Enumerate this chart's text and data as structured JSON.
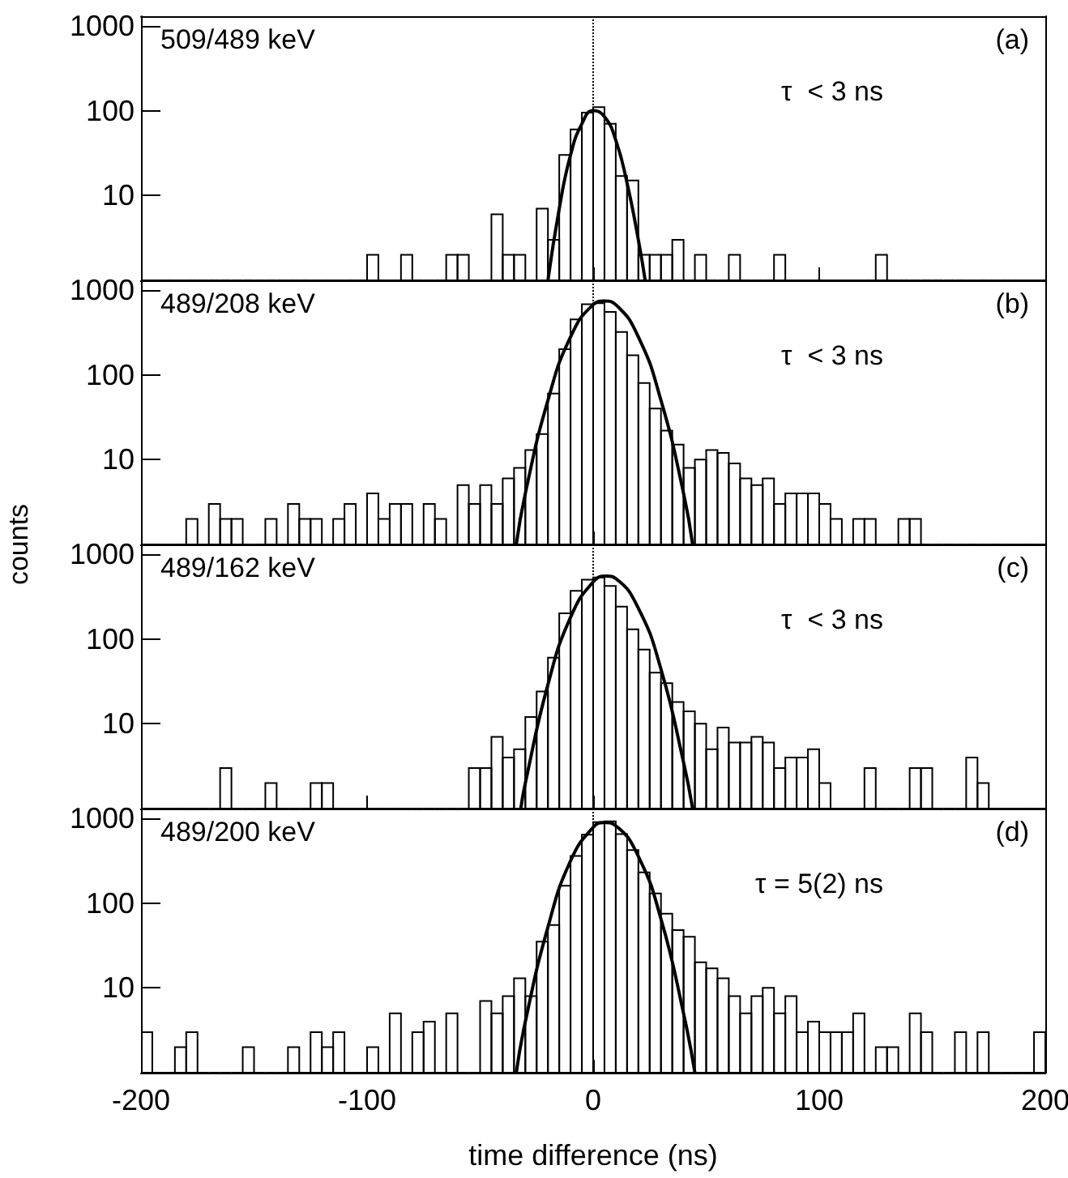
{
  "chart_data": [
    {
      "type": "histogram",
      "annotations": [
        "509/489 keV",
        "(a)",
        "τ  < 3 ns"
      ],
      "xlim": [
        -200,
        200
      ],
      "xticks": [
        -200,
        -100,
        0,
        100,
        200
      ],
      "ylim": [
        1,
        1300
      ],
      "yticks": [
        10,
        100,
        1000
      ],
      "log": "y",
      "tick_labels": "y",
      "bins": [
        -200,
        -195,
        -190,
        -185,
        -180,
        -175,
        -170,
        -165,
        -160,
        -155,
        -150,
        -145,
        -140,
        -135,
        -130,
        -125,
        -120,
        -115,
        -110,
        -105,
        -100,
        -95,
        -90,
        -85,
        -80,
        -75,
        -70,
        -65,
        -60,
        -55,
        -50,
        -45,
        -40,
        -35,
        -30,
        -25,
        -20,
        -15,
        -10,
        -5,
        0,
        5,
        10,
        15,
        20,
        25,
        30,
        35,
        40,
        45,
        50,
        55,
        60,
        65,
        70,
        75,
        80,
        85,
        90,
        95,
        100,
        105,
        110,
        115,
        120,
        125,
        130,
        135,
        140,
        145,
        150,
        155,
        160,
        165,
        170,
        175,
        180,
        185,
        190,
        195,
        200
      ],
      "ref_lines": [
        {
          "axis": "x",
          "value": 0,
          "line_style": "dotted",
          "color": "#000000"
        }
      ],
      "series": [
        {
          "type": "histogram",
          "color": "#000000",
          "values": [
            null,
            null,
            null,
            null,
            null,
            null,
            null,
            null,
            null,
            null,
            null,
            null,
            null,
            null,
            null,
            null,
            null,
            null,
            null,
            null,
            2,
            null,
            null,
            2,
            null,
            null,
            null,
            2,
            2,
            null,
            null,
            6,
            2,
            2,
            null,
            7,
            3,
            30,
            60,
            95,
            110,
            70,
            17,
            15,
            2,
            2,
            2,
            3,
            null,
            2,
            null,
            null,
            2,
            null,
            null,
            null,
            2,
            null,
            null,
            null,
            null,
            null,
            null,
            null,
            null,
            2,
            null,
            null,
            null,
            null,
            null,
            null,
            null,
            null,
            null,
            null,
            null,
            null,
            null,
            null
          ]
        },
        {
          "type": "line",
          "color": "#000000",
          "x": [
            -20,
            -15,
            -10,
            -5,
            0,
            5,
            10,
            15,
            20,
            23
          ],
          "values": [
            1,
            7,
            30,
            70,
            100,
            85,
            45,
            14,
            3,
            1
          ]
        }
      ]
    },
    {
      "type": "histogram",
      "annotations": [
        "489/208 keV",
        "(b)",
        "τ  < 3 ns"
      ],
      "ylabel": "counts",
      "xlim": [
        -200,
        200
      ],
      "xticks": [
        -200,
        -100,
        0,
        100,
        200
      ],
      "ylim": [
        1,
        1300
      ],
      "yticks": [
        10,
        100,
        1000
      ],
      "log": "y",
      "tick_labels": "y",
      "bins": [
        -200,
        -195,
        -190,
        -185,
        -180,
        -175,
        -170,
        -165,
        -160,
        -155,
        -150,
        -145,
        -140,
        -135,
        -130,
        -125,
        -120,
        -115,
        -110,
        -105,
        -100,
        -95,
        -90,
        -85,
        -80,
        -75,
        -70,
        -65,
        -60,
        -55,
        -50,
        -45,
        -40,
        -35,
        -30,
        -25,
        -20,
        -15,
        -10,
        -5,
        0,
        5,
        10,
        15,
        20,
        25,
        30,
        35,
        40,
        45,
        50,
        55,
        60,
        65,
        70,
        75,
        80,
        85,
        90,
        95,
        100,
        105,
        110,
        115,
        120,
        125,
        130,
        135,
        140,
        145,
        150,
        155,
        160,
        165,
        170,
        175,
        180,
        185,
        190,
        195,
        200
      ],
      "ref_lines": [
        {
          "axis": "x",
          "value": 0,
          "line_style": "dotted",
          "color": "#000000"
        }
      ],
      "series": [
        {
          "type": "histogram",
          "color": "#000000",
          "values": [
            null,
            null,
            null,
            null,
            2,
            null,
            3,
            2,
            2,
            null,
            null,
            2,
            null,
            3,
            2,
            2,
            null,
            2,
            3,
            null,
            4,
            2,
            3,
            3,
            null,
            3,
            2,
            null,
            5,
            3,
            5,
            3,
            6,
            8,
            13,
            20,
            60,
            200,
            450,
            680,
            700,
            550,
            320,
            170,
            80,
            40,
            22,
            15,
            8,
            10,
            13,
            12,
            9,
            6,
            5,
            6,
            3,
            4,
            4,
            4,
            3,
            2,
            null,
            2,
            2,
            null,
            null,
            2,
            2,
            null,
            null,
            null,
            null,
            null,
            null,
            null,
            null,
            null,
            null,
            null
          ]
        },
        {
          "type": "line",
          "color": "#000000",
          "x": [
            -34,
            -30,
            -20,
            -10,
            0,
            5,
            10,
            20,
            30,
            40,
            44
          ],
          "values": [
            1,
            4,
            50,
            280,
            670,
            740,
            670,
            280,
            50,
            4,
            1
          ]
        }
      ]
    },
    {
      "type": "histogram",
      "annotations": [
        "489/162 keV",
        "(c)",
        "τ  < 3 ns"
      ],
      "xlim": [
        -200,
        200
      ],
      "xticks": [
        -200,
        -100,
        0,
        100,
        200
      ],
      "ylim": [
        1,
        1300
      ],
      "yticks": [
        10,
        100,
        1000
      ],
      "log": "y",
      "tick_labels": "y",
      "bins": [
        -200,
        -195,
        -190,
        -185,
        -180,
        -175,
        -170,
        -165,
        -160,
        -155,
        -150,
        -145,
        -140,
        -135,
        -130,
        -125,
        -120,
        -115,
        -110,
        -105,
        -100,
        -95,
        -90,
        -85,
        -80,
        -75,
        -70,
        -65,
        -60,
        -55,
        -50,
        -45,
        -40,
        -35,
        -30,
        -25,
        -20,
        -15,
        -10,
        -5,
        0,
        5,
        10,
        15,
        20,
        25,
        30,
        35,
        40,
        45,
        50,
        55,
        60,
        65,
        70,
        75,
        80,
        85,
        90,
        95,
        100,
        105,
        110,
        115,
        120,
        125,
        130,
        135,
        140,
        145,
        150,
        155,
        160,
        165,
        170,
        175,
        180,
        185,
        190,
        195,
        200
      ],
      "ref_lines": [
        {
          "axis": "x",
          "value": 0,
          "line_style": "dotted",
          "color": "#000000"
        }
      ],
      "series": [
        {
          "type": "histogram",
          "color": "#000000",
          "values": [
            null,
            null,
            null,
            null,
            null,
            null,
            null,
            3,
            null,
            null,
            null,
            2,
            null,
            null,
            null,
            2,
            2,
            null,
            null,
            null,
            null,
            null,
            null,
            null,
            null,
            null,
            null,
            null,
            null,
            3,
            3,
            7,
            4,
            5,
            12,
            24,
            60,
            200,
            370,
            500,
            530,
            420,
            240,
            130,
            75,
            40,
            30,
            18,
            14,
            10,
            5,
            9,
            6,
            6,
            7,
            6,
            3,
            4,
            4,
            5,
            2,
            null,
            null,
            null,
            3,
            null,
            null,
            null,
            3,
            3,
            null,
            null,
            null,
            4,
            2,
            null,
            null,
            null,
            null,
            null
          ]
        },
        {
          "type": "line",
          "color": "#000000",
          "x": [
            -32,
            -30,
            -20,
            -10,
            0,
            6,
            10,
            20,
            30,
            40,
            44
          ],
          "values": [
            1,
            2,
            29,
            180,
            470,
            550,
            515,
            230,
            44,
            3.5,
            1
          ]
        }
      ]
    },
    {
      "type": "histogram",
      "annotations": [
        "489/200 keV",
        "(d)",
        "τ = 5(2) ns"
      ],
      "xlabel": "time difference (ns)",
      "xlim": [
        -200,
        200
      ],
      "xticks": [
        -200,
        -100,
        0,
        100,
        200
      ],
      "ylim": [
        1,
        1300
      ],
      "yticks": [
        10,
        100,
        1000
      ],
      "log": "y",
      "bins": [
        -200,
        -195,
        -190,
        -185,
        -180,
        -175,
        -170,
        -165,
        -160,
        -155,
        -150,
        -145,
        -140,
        -135,
        -130,
        -125,
        -120,
        -115,
        -110,
        -105,
        -100,
        -95,
        -90,
        -85,
        -80,
        -75,
        -70,
        -65,
        -60,
        -55,
        -50,
        -45,
        -40,
        -35,
        -30,
        -25,
        -20,
        -15,
        -10,
        -5,
        0,
        5,
        10,
        15,
        20,
        25,
        30,
        35,
        40,
        45,
        50,
        55,
        60,
        65,
        70,
        75,
        80,
        85,
        90,
        95,
        100,
        105,
        110,
        115,
        120,
        125,
        130,
        135,
        140,
        145,
        150,
        155,
        160,
        165,
        170,
        175,
        180,
        185,
        190,
        195,
        200
      ],
      "ref_lines": [
        {
          "axis": "x",
          "value": 0,
          "line_style": "dotted",
          "color": "#000000"
        }
      ],
      "series": [
        {
          "type": "histogram",
          "color": "#000000",
          "values": [
            3,
            null,
            null,
            2,
            3,
            null,
            null,
            null,
            null,
            2,
            null,
            null,
            null,
            2,
            null,
            3,
            2,
            3,
            null,
            null,
            2,
            null,
            5,
            null,
            3,
            4,
            null,
            5,
            null,
            null,
            7,
            5,
            8,
            13,
            8,
            35,
            55,
            160,
            360,
            640,
            900,
            920,
            650,
            420,
            230,
            130,
            75,
            48,
            40,
            20,
            17,
            13,
            8,
            5,
            8,
            10,
            5,
            8,
            3,
            4,
            3,
            3,
            3,
            5,
            null,
            2,
            2,
            null,
            5,
            3,
            null,
            null,
            3,
            null,
            3,
            null,
            null,
            null,
            null,
            3
          ]
        },
        {
          "type": "line",
          "color": "#000000",
          "x": [
            -34,
            -30,
            -20,
            -10,
            0,
            5,
            10,
            20,
            30,
            40,
            45
          ],
          "values": [
            1,
            4,
            52,
            315,
            780,
            890,
            815,
            355,
            65,
            5,
            1
          ]
        }
      ]
    }
  ]
}
